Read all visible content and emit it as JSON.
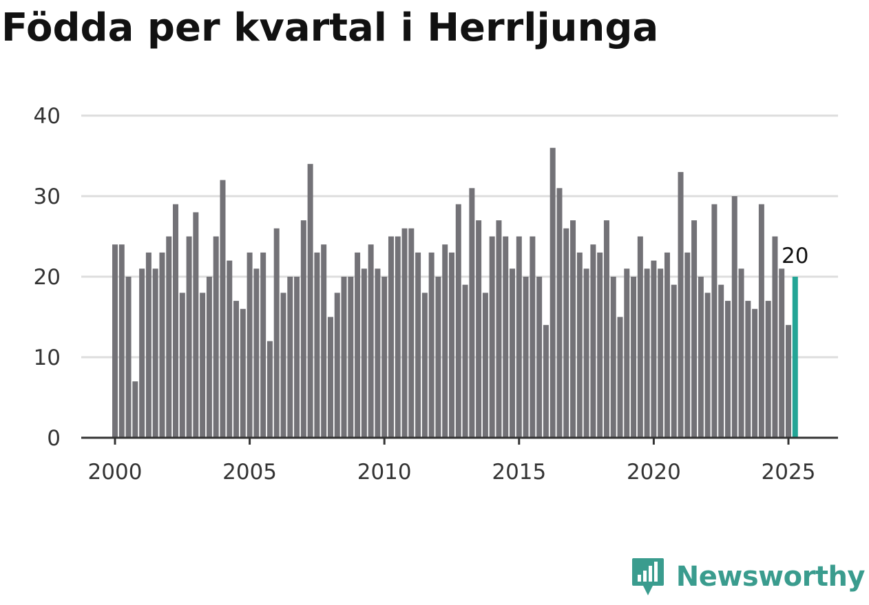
{
  "chart_data": {
    "type": "bar",
    "title": "Födda per kvartal i Herrljunga",
    "xlabel": "",
    "ylabel": "",
    "ylim": [
      0,
      40
    ],
    "yticks": [
      0,
      10,
      20,
      30,
      40
    ],
    "xticks": [
      "2000",
      "2005",
      "2010",
      "2015",
      "2020",
      "2025"
    ],
    "grid": true,
    "legend": "none",
    "bar_color": "#737277",
    "highlight_color": "#23a596",
    "highlight_label": "20",
    "quarters": [
      "2000K1",
      "2000K2",
      "2000K3",
      "2000K4",
      "2001K1",
      "2001K2",
      "2001K3",
      "2001K4",
      "2002K1",
      "2002K2",
      "2002K3",
      "2002K4",
      "2003K1",
      "2003K2",
      "2003K3",
      "2003K4",
      "2004K1",
      "2004K2",
      "2004K3",
      "2004K4",
      "2005K1",
      "2005K2",
      "2005K3",
      "2005K4",
      "2006K1",
      "2006K2",
      "2006K3",
      "2006K4",
      "2007K1",
      "2007K2",
      "2007K3",
      "2007K4",
      "2008K1",
      "2008K2",
      "2008K3",
      "2008K4",
      "2009K1",
      "2009K2",
      "2009K3",
      "2009K4",
      "2010K1",
      "2010K2",
      "2010K3",
      "2010K4",
      "2011K1",
      "2011K2",
      "2011K3",
      "2011K4",
      "2012K1",
      "2012K2",
      "2012K3",
      "2012K4",
      "2013K1",
      "2013K2",
      "2013K3",
      "2013K4",
      "2014K1",
      "2014K2",
      "2014K3",
      "2014K4",
      "2015K1",
      "2015K2",
      "2015K3",
      "2015K4",
      "2016K1",
      "2016K2",
      "2016K3",
      "2016K4",
      "2017K1",
      "2017K2",
      "2017K3",
      "2017K4",
      "2018K1",
      "2018K2",
      "2018K3",
      "2018K4",
      "2019K1",
      "2019K2",
      "2019K3",
      "2019K4",
      "2020K1",
      "2020K2",
      "2020K3",
      "2020K4",
      "2021K1",
      "2021K2",
      "2021K3",
      "2021K4",
      "2022K1",
      "2022K2",
      "2022K3",
      "2022K4",
      "2023K1",
      "2023K2",
      "2023K3",
      "2023K4",
      "2024K1",
      "2024K2",
      "2024K3",
      "2024K4",
      "2025K1",
      "2025K2"
    ],
    "values": [
      24,
      24,
      20,
      7,
      21,
      23,
      21,
      23,
      25,
      29,
      18,
      25,
      28,
      18,
      20,
      25,
      32,
      22,
      17,
      16,
      23,
      21,
      23,
      12,
      26,
      18,
      20,
      20,
      27,
      34,
      23,
      24,
      15,
      18,
      20,
      20,
      23,
      21,
      24,
      21,
      20,
      25,
      25,
      26,
      26,
      23,
      18,
      23,
      20,
      24,
      23,
      29,
      19,
      31,
      27,
      18,
      25,
      27,
      25,
      21,
      25,
      20,
      25,
      20,
      14,
      36,
      31,
      26,
      27,
      23,
      21,
      24,
      23,
      27,
      20,
      15,
      21,
      20,
      25,
      21,
      22,
      21,
      23,
      19,
      33,
      23,
      27,
      20,
      18,
      29,
      19,
      17,
      30,
      21,
      17,
      16,
      29,
      17,
      25,
      21,
      14,
      20
    ]
  },
  "brand": {
    "name": "Newsworthy",
    "color": "#3a9c8e",
    "icon": "newsworthy-logo-icon"
  }
}
